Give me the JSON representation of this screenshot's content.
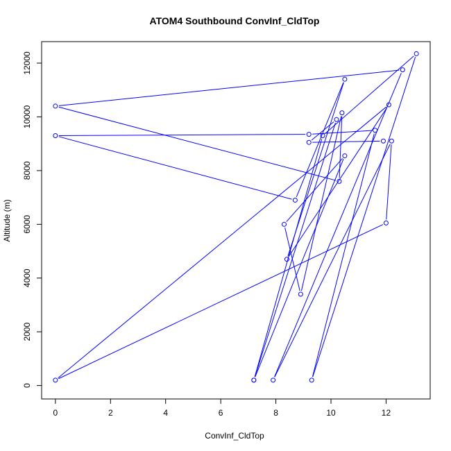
{
  "chart_data": {
    "type": "line",
    "title": "ATOM4 Southbound ConvInf_CldTop",
    "xlabel": "ConvInf_CldTop",
    "ylabel": "Altitude (m)",
    "xlim": [
      -0.5,
      13.6
    ],
    "ylim": [
      -500,
      12800
    ],
    "x_ticks": [
      0,
      2,
      4,
      6,
      8,
      10,
      12
    ],
    "y_ticks": [
      0,
      2000,
      4000,
      6000,
      8000,
      10000,
      12000
    ],
    "grid": false,
    "legend": "none",
    "line_style": "both (points connected by lines)",
    "series": [
      {
        "color": "#0000ff",
        "marker": "open-circle",
        "points": [
          {
            "x": 7.2,
            "y": 200
          },
          {
            "x": 10.5,
            "y": 8550
          },
          {
            "x": 8.3,
            "y": 6000
          },
          {
            "x": 8.9,
            "y": 3400
          },
          {
            "x": 10.4,
            "y": 10150
          },
          {
            "x": 10.3,
            "y": 7600
          },
          {
            "x": 0.0,
            "y": 10400
          },
          {
            "x": 12.6,
            "y": 11750
          },
          {
            "x": 7.9,
            "y": 200
          },
          {
            "x": 12.2,
            "y": 9100
          },
          {
            "x": 12.0,
            "y": 6050
          },
          {
            "x": 0.0,
            "y": 200
          },
          {
            "x": 12.1,
            "y": 10450
          },
          {
            "x": 8.4,
            "y": 4700
          },
          {
            "x": 10.5,
            "y": 11400
          },
          {
            "x": 8.7,
            "y": 6900
          },
          {
            "x": 0.0,
            "y": 9300
          },
          {
            "x": 9.2,
            "y": 9350
          },
          {
            "x": 11.6,
            "y": 9500
          },
          {
            "x": 9.3,
            "y": 200
          },
          {
            "x": 13.1,
            "y": 12350
          },
          {
            "x": 9.7,
            "y": 9300
          },
          {
            "x": 7.2,
            "y": 200
          },
          {
            "x": 10.2,
            "y": 9900
          },
          {
            "x": 9.2,
            "y": 9050
          },
          {
            "x": 11.9,
            "y": 9100
          }
        ]
      }
    ]
  }
}
